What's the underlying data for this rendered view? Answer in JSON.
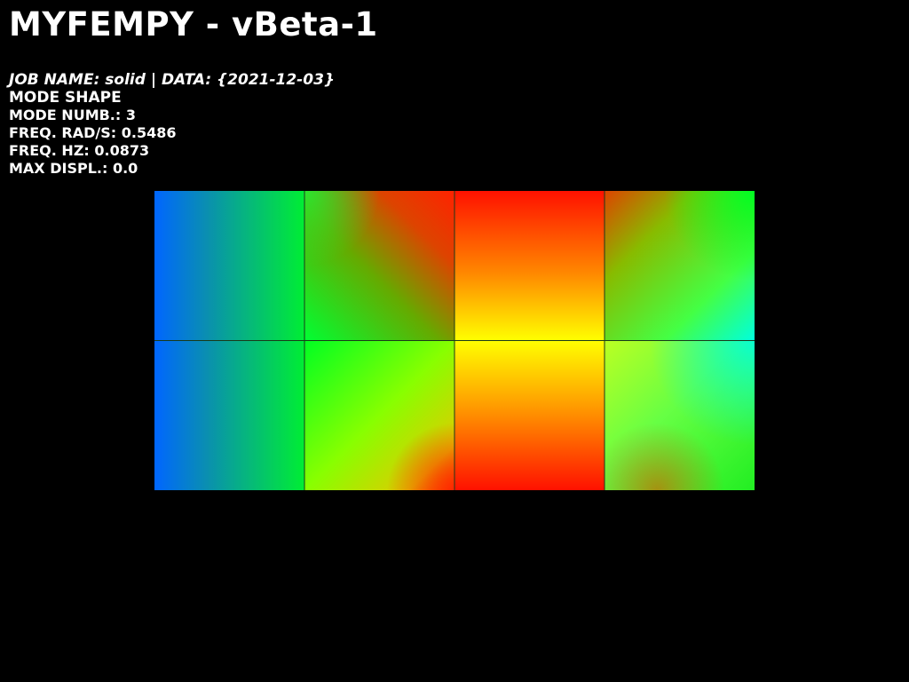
{
  "app_title": "MYFEMPY - vBeta-1",
  "info": {
    "job_line": "JOB NAME: solid | DATA: {2021-12-03}",
    "result_type": "MODE SHAPE",
    "mode_number": "MODE NUMB.: 3",
    "freq_rad": "FREQ. RAD/S: 0.5486",
    "freq_hz": "FREQ. HZ: 0.0873",
    "max_displ": "MAX DISPL.: 0.0"
  },
  "mesh": {
    "columns": 4,
    "rows": 2,
    "colors": {
      "blue": "#0066ff",
      "cyan": "#00ffdd",
      "green": "#00ff22",
      "yellow_green": "#88ff00",
      "yellow": "#ffff00",
      "orange": "#ff8800",
      "red": "#ff1100",
      "grid_line": "#1a3a1a"
    }
  }
}
